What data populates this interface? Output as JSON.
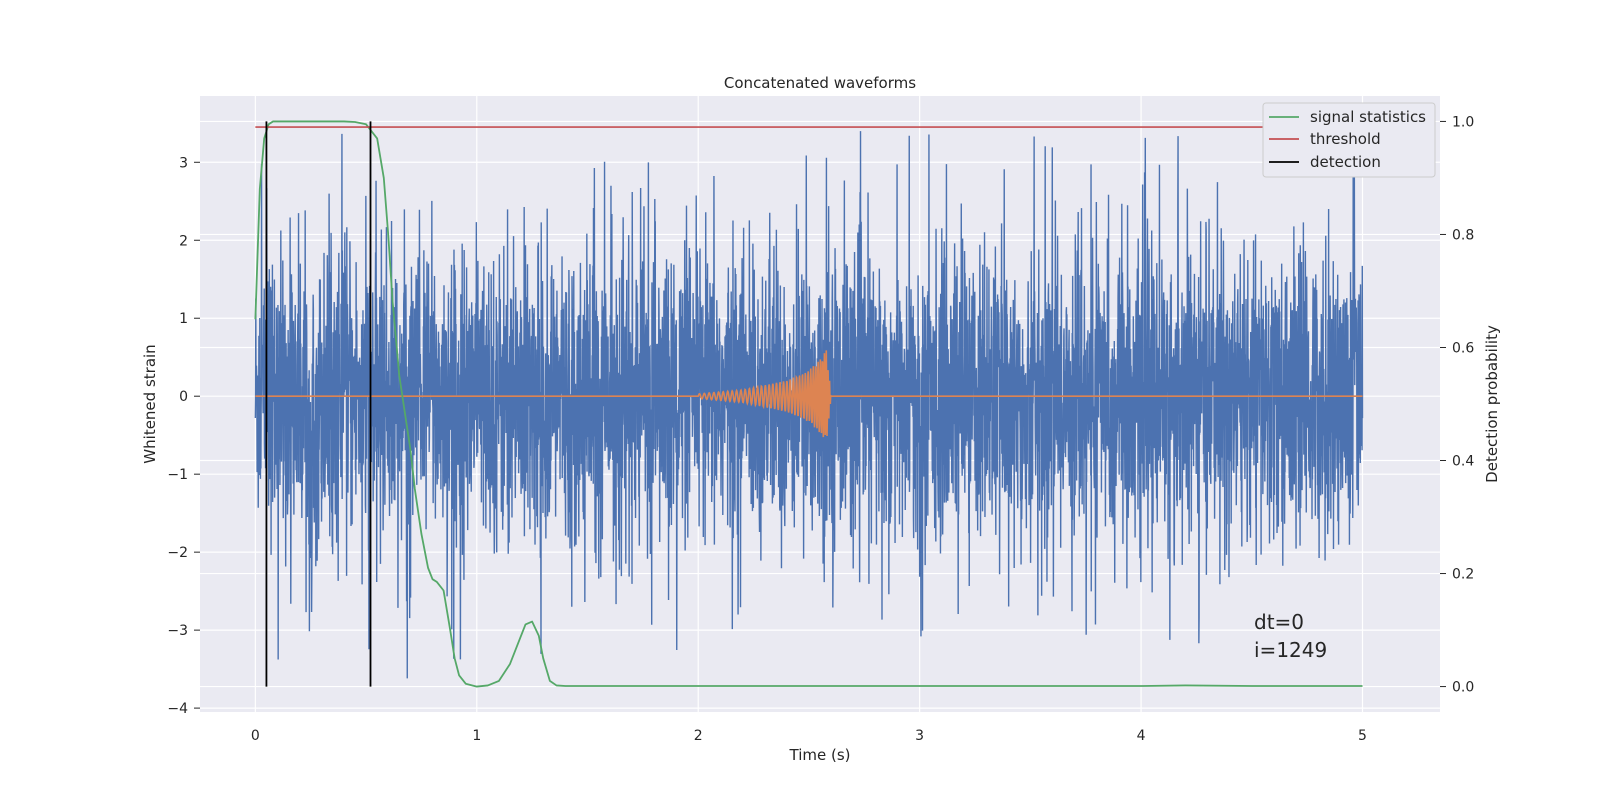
{
  "chart_data": {
    "type": "line",
    "title": "Concatenated waveforms",
    "xlabel": "Time (s)",
    "ylabel": "Whitened strain",
    "y2label": "Detection probability",
    "xlim": [
      -0.25,
      5.35
    ],
    "ylim": [
      -4.05,
      3.85
    ],
    "y2lim": [
      -0.045,
      1.045
    ],
    "xticks": [
      "0",
      "1",
      "2",
      "3",
      "4",
      "5"
    ],
    "yticks": [
      "−4",
      "−3",
      "−2",
      "−1",
      "0",
      "1",
      "2",
      "3"
    ],
    "y2ticks": [
      "0.0",
      "0.2",
      "0.4",
      "0.6",
      "0.8",
      "1.0"
    ],
    "grid": true,
    "legend_position": "top-right",
    "colors": {
      "strain": "#4c72b0",
      "template": "#dd8452",
      "signal_statistics": "#55a868",
      "threshold": "#c44e52",
      "detection": "#000000",
      "axes_bg": "#eaeaf2"
    },
    "series": [
      {
        "key": "strain",
        "description": "whitened strain noise, amplitude about 1, spikes up to about ±3.4",
        "x_range": [
          0,
          5
        ],
        "axis": "left"
      },
      {
        "key": "template",
        "description": "injected chirp",
        "x": [
          0,
          2.0,
          2.2,
          2.4,
          2.5,
          2.55,
          2.58,
          2.6,
          5
        ],
        "envelope": [
          0,
          0.03,
          0.08,
          0.2,
          0.33,
          0.48,
          0.6,
          0,
          0
        ],
        "axis": "left"
      },
      {
        "key": "signal_statistics",
        "name": "signal statistics",
        "x": [
          0,
          0.02,
          0.04,
          0.06,
          0.08,
          0.1,
          0.2,
          0.3,
          0.4,
          0.45,
          0.5,
          0.55,
          0.58,
          0.6,
          0.62,
          0.65,
          0.7,
          0.72,
          0.75,
          0.78,
          0.8,
          0.82,
          0.85,
          0.88,
          0.9,
          0.92,
          0.95,
          1.0,
          1.05,
          1.1,
          1.15,
          1.2,
          1.22,
          1.25,
          1.28,
          1.3,
          1.33,
          1.36,
          1.4,
          2.0,
          3.0,
          4.0,
          4.2,
          4.5,
          5.0
        ],
        "values": [
          0.65,
          0.88,
          0.97,
          0.995,
          1.0,
          1.0,
          1.0,
          1.0,
          1.0,
          0.999,
          0.995,
          0.97,
          0.9,
          0.8,
          0.68,
          0.55,
          0.42,
          0.35,
          0.27,
          0.21,
          0.19,
          0.185,
          0.17,
          0.1,
          0.05,
          0.02,
          0.005,
          0.0,
          0.002,
          0.01,
          0.04,
          0.09,
          0.11,
          0.115,
          0.09,
          0.05,
          0.01,
          0.002,
          0.001,
          0.001,
          0.001,
          0.001,
          0.002,
          0.001,
          0.001
        ],
        "axis": "right"
      },
      {
        "key": "threshold",
        "name": "threshold",
        "x": [
          0,
          5
        ],
        "values": [
          0.99,
          0.99
        ],
        "axis": "right"
      },
      {
        "key": "detection",
        "name": "detection",
        "x": [
          0.05,
          0.52
        ],
        "axis": "right"
      }
    ],
    "annotations": [
      "dt=0",
      "i=1249"
    ]
  }
}
